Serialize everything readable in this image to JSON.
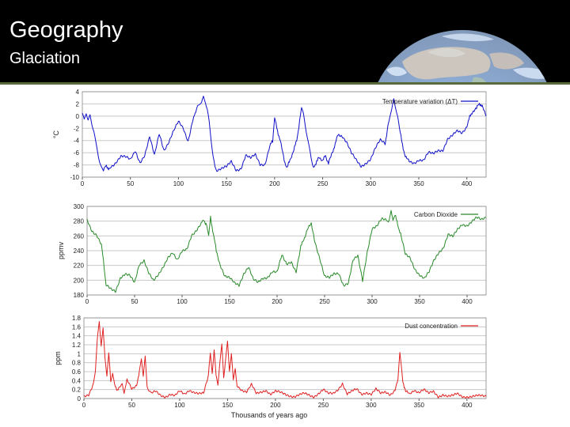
{
  "slide": {
    "title": "Geography",
    "subtitle": "Glaciation"
  },
  "colors": {
    "header_bg": "#000000",
    "accent_rule": "#5a6a3a",
    "temperature": "#1010c8",
    "co2": "#2a8a2a",
    "dust": "#e02020"
  },
  "chart_data": [
    {
      "type": "line",
      "ylabel": "°C",
      "ylim": [
        -10,
        4
      ],
      "yticks": [
        "4",
        "2",
        "0",
        "-2",
        "-4",
        "-6",
        "-8",
        "-10"
      ],
      "xlim": [
        0,
        420
      ],
      "xticks": [
        "0",
        "50",
        "100",
        "150",
        "200",
        "250",
        "300",
        "350",
        "400"
      ],
      "grid": true,
      "legend_position": "top-right",
      "series": [
        {
          "name": "Temperature variation (ΔT)",
          "color": "#1010c8",
          "x": [
            0,
            2,
            4,
            6,
            8,
            10,
            12,
            14,
            16,
            18,
            20,
            22,
            25,
            28,
            30,
            35,
            40,
            45,
            50,
            55,
            60,
            65,
            70,
            75,
            80,
            85,
            90,
            95,
            100,
            105,
            110,
            115,
            118,
            120,
            122,
            124,
            126,
            128,
            130,
            132,
            134,
            136,
            138,
            140,
            145,
            150,
            155,
            160,
            165,
            170,
            175,
            180,
            185,
            190,
            195,
            198,
            200,
            203,
            206,
            210,
            213,
            216,
            220,
            223,
            226,
            228,
            230,
            232,
            234,
            236,
            238,
            240,
            243,
            246,
            250,
            253,
            256,
            260,
            263,
            266,
            270,
            275,
            280,
            285,
            290,
            295,
            300,
            305,
            310,
            315,
            318,
            320,
            322,
            324,
            326,
            328,
            330,
            333,
            336,
            340,
            345,
            350,
            355,
            360,
            365,
            370,
            375,
            380,
            385,
            390,
            395,
            400,
            403,
            406,
            410,
            413,
            416,
            420
          ],
          "y": [
            0.5,
            -0.8,
            0.4,
            -0.6,
            0.2,
            -1.2,
            -2.5,
            -4.5,
            -6,
            -7.5,
            -8.4,
            -8.8,
            -8.2,
            -8.6,
            -8.2,
            -7.5,
            -6.6,
            -6.8,
            -7.2,
            -5.6,
            -7.5,
            -6.4,
            -3.5,
            -6.5,
            -2.8,
            -5.5,
            -4.2,
            -2.5,
            -1,
            -2,
            -4,
            -0.5,
            0.5,
            1.5,
            2,
            2.2,
            3.3,
            2.5,
            1,
            -1.2,
            -4,
            -6.5,
            -8.3,
            -8.8,
            -8.6,
            -8.4,
            -7.5,
            -8.8,
            -8.5,
            -6.4,
            -7,
            -6.4,
            -7.9,
            -7.8,
            -4.8,
            -4.2,
            -0.4,
            -2.3,
            -4.2,
            -7.2,
            -8.5,
            -7.2,
            -5.4,
            -4.1,
            -0.8,
            1.4,
            0.3,
            -1.5,
            -3.2,
            -5.2,
            -7,
            -8.2,
            -8,
            -6.5,
            -7.4,
            -6.4,
            -7.8,
            -6.1,
            -4.5,
            -3.1,
            -3.1,
            -4.3,
            -6.2,
            -7.3,
            -8.2,
            -7.6,
            -7,
            -5.3,
            -4,
            -4.5,
            -1.5,
            0,
            1,
            2.8,
            1.5,
            0,
            -2.2,
            -4.6,
            -6.8,
            -7.4,
            -7.6,
            -7.1,
            -7.3,
            -6.1,
            -6.2,
            -5.5,
            -5.5,
            -3.8,
            -3.3,
            -2.5,
            -2.7,
            -1.6,
            -0.2,
            0.8,
            1.2,
            2.2,
            1.5,
            0
          ]
        }
      ]
    },
    {
      "type": "line",
      "ylabel": "ppmv",
      "ylim": [
        180,
        300
      ],
      "yticks": [
        "300",
        "280",
        "260",
        "240",
        "220",
        "200",
        "180"
      ],
      "xlim": [
        0,
        420
      ],
      "xticks": [
        "0",
        "50",
        "100",
        "150",
        "200",
        "250",
        "300",
        "350",
        "400"
      ],
      "grid": true,
      "legend_position": "top-right",
      "series": [
        {
          "name": "Carbon Dioxide",
          "color": "#2a8a2a",
          "x": [
            0,
            5,
            10,
            15,
            18,
            20,
            25,
            30,
            35,
            40,
            45,
            50,
            55,
            60,
            65,
            70,
            75,
            80,
            85,
            90,
            95,
            100,
            105,
            110,
            115,
            120,
            123,
            126,
            128,
            130,
            133,
            136,
            140,
            145,
            150,
            155,
            160,
            165,
            170,
            175,
            180,
            185,
            190,
            195,
            200,
            205,
            210,
            215,
            220,
            225,
            228,
            232,
            236,
            240,
            245,
            250,
            255,
            260,
            265,
            270,
            275,
            280,
            285,
            290,
            295,
            300,
            305,
            310,
            315,
            318,
            320,
            322,
            324,
            327,
            330,
            335,
            340,
            345,
            350,
            355,
            360,
            365,
            370,
            375,
            380,
            385,
            390,
            395,
            400,
            405,
            410,
            415,
            420
          ],
          "y": [
            282,
            268,
            262,
            248,
            218,
            192,
            188,
            186,
            204,
            208,
            205,
            196,
            222,
            228,
            210,
            198,
            206,
            218,
            232,
            238,
            226,
            238,
            242,
            262,
            268,
            276,
            282,
            274,
            262,
            285,
            262,
            240,
            222,
            205,
            202,
            196,
            194,
            210,
            218,
            200,
            196,
            203,
            205,
            212,
            210,
            233,
            222,
            226,
            212,
            245,
            255,
            270,
            275,
            252,
            230,
            205,
            202,
            208,
            210,
            194,
            196,
            226,
            232,
            200,
            240,
            270,
            272,
            282,
            282,
            280,
            295,
            280,
            288,
            276,
            262,
            234,
            230,
            216,
            208,
            202,
            210,
            226,
            238,
            245,
            262,
            258,
            268,
            276,
            275,
            280,
            284,
            281,
            285
          ]
        }
      ]
    },
    {
      "type": "line",
      "ylabel": "ppm",
      "ylim": [
        0,
        1.8
      ],
      "yticks": [
        "1.8",
        "1.6",
        "1.4",
        "1.2",
        "1",
        "0.8",
        "0.6",
        "0.4",
        "0.2",
        "0"
      ],
      "xlim": [
        0,
        420
      ],
      "xticks": [
        "0",
        "50",
        "100",
        "150",
        "200",
        "250",
        "300",
        "350",
        "400"
      ],
      "xlabel": "Thousands of years ago",
      "grid": true,
      "legend_position": "top-right",
      "series": [
        {
          "name": "Dust concentration",
          "color": "#e02020",
          "x": [
            0,
            5,
            10,
            12,
            14,
            16,
            18,
            20,
            22,
            24,
            26,
            28,
            30,
            32,
            35,
            38,
            40,
            42,
            45,
            50,
            55,
            58,
            60,
            62,
            64,
            66,
            68,
            70,
            75,
            80,
            85,
            90,
            95,
            100,
            105,
            110,
            115,
            120,
            125,
            130,
            132,
            134,
            136,
            138,
            140,
            142,
            144,
            146,
            148,
            150,
            152,
            154,
            156,
            158,
            160,
            165,
            170,
            175,
            180,
            185,
            190,
            195,
            200,
            210,
            220,
            230,
            240,
            250,
            255,
            260,
            265,
            270,
            275,
            280,
            285,
            290,
            295,
            300,
            305,
            310,
            315,
            320,
            325,
            328,
            330,
            333,
            336,
            340,
            345,
            350,
            355,
            360,
            365,
            370,
            375,
            380,
            385,
            390,
            395,
            400,
            405,
            410,
            420
          ],
          "y": [
            0.05,
            0.1,
            0.35,
            0.6,
            1.3,
            1.75,
            1.2,
            1.55,
            0.9,
            0.5,
            1.0,
            0.4,
            0.6,
            0.3,
            0.2,
            0.25,
            0.35,
            0.15,
            0.4,
            0.2,
            0.3,
            0.6,
            0.9,
            0.5,
            0.95,
            0.3,
            0.15,
            0.1,
            0.15,
            0.08,
            0.05,
            0.1,
            0.05,
            0.15,
            0.1,
            0.2,
            0.15,
            0.1,
            0.1,
            0.5,
            1.0,
            0.6,
            1.1,
            0.5,
            0.3,
            0.8,
            1.2,
            0.5,
            0.9,
            1.25,
            0.6,
            1.0,
            0.4,
            0.7,
            0.3,
            0.2,
            0.15,
            0.3,
            0.1,
            0.15,
            0.2,
            0.1,
            0.15,
            0.1,
            0.05,
            0.1,
            0.05,
            0.2,
            0.1,
            0.1,
            0.2,
            0.35,
            0.1,
            0.15,
            0.2,
            0.1,
            0.15,
            0.1,
            0.2,
            0.1,
            0.15,
            0.1,
            0.2,
            0.4,
            1.0,
            0.4,
            0.15,
            0.1,
            0.2,
            0.15,
            0.2,
            0.1,
            0.15,
            0.05,
            0.1,
            0.05,
            0.05,
            0.1,
            0.05,
            0.05,
            0.05,
            0.05,
            0.05
          ]
        }
      ]
    }
  ]
}
